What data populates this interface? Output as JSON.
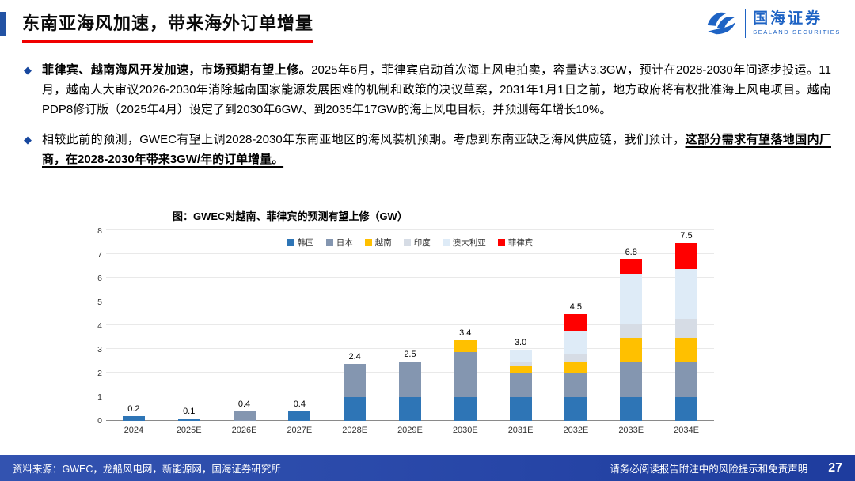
{
  "header": {
    "title": "东南亚海风加速，带来海外订单增量",
    "logo_name": "国海证券",
    "logo_sub": "SEALAND SECURITIES"
  },
  "bullets": {
    "marker": "◆",
    "items": [
      {
        "bold": "菲律宾、越南海风开发加速，市场预期有望上修。",
        "text": "2025年6月，菲律宾启动首次海上风电拍卖，容量达3.3GW，预计在2028-2030年间逐步投运。11月，越南人大审议2026-2030年消除越南国家能源发展困难的机制和政策的决议草案，2031年1月1日之前，地方政府将有权批准海上风电项目。越南PDP8修订版（2025年4月）设定了到2030年6GW、到2035年17GW的海上风电目标，并预测每年增长10%。"
      },
      {
        "text": "相较此前的预测，GWEC有望上调2028-2030年东南亚地区的海风装机预期。考虑到东南亚缺乏海风供应链，我们预计，",
        "bold_underline": "这部分需求有望落地国内厂商，在2028-2030年带来3GW/年的订单增量。"
      }
    ]
  },
  "chart_data": {
    "type": "bar",
    "stacked": true,
    "title": "图：GWEC对越南、菲律宾的预测有望上修（GW）",
    "categories": [
      "2024",
      "2025E",
      "2026E",
      "2027E",
      "2028E",
      "2029E",
      "2030E",
      "2031E",
      "2032E",
      "2033E",
      "2034E"
    ],
    "series": [
      {
        "name": "韩国",
        "color": "#2E75B6",
        "values": [
          0.2,
          0.1,
          0,
          0.4,
          1.0,
          1.0,
          1.0,
          1.0,
          1.0,
          1.0,
          1.0
        ]
      },
      {
        "name": "日本",
        "color": "#8496B0",
        "values": [
          0,
          0,
          0.4,
          0,
          1.4,
          1.5,
          1.9,
          1.0,
          1.0,
          1.5,
          1.5
        ]
      },
      {
        "name": "越南",
        "color": "#FFC000",
        "values": [
          0,
          0,
          0,
          0,
          0,
          0,
          0.5,
          0.3,
          0.5,
          1.0,
          1.0
        ]
      },
      {
        "name": "印度",
        "color": "#D6DCE5",
        "values": [
          0,
          0,
          0,
          0,
          0,
          0,
          0,
          0.2,
          0.3,
          0.6,
          0.8
        ]
      },
      {
        "name": "澳大利亚",
        "color": "#DEEBF7",
        "values": [
          0,
          0,
          0,
          0,
          0,
          0,
          0,
          0.5,
          1.0,
          2.1,
          2.1
        ]
      },
      {
        "name": "菲律宾",
        "color": "#FF0000",
        "values": [
          0,
          0,
          0,
          0,
          0,
          0,
          0,
          0,
          0.7,
          0.6,
          1.1
        ]
      }
    ],
    "totals": [
      "0.2",
      "0.1",
      "0.4",
      "0.4",
      "2.4",
      "2.5",
      "3.4",
      "3.0",
      "4.5",
      "6.8",
      "7.5"
    ],
    "ylim": [
      0,
      8
    ],
    "ytick_step": 1,
    "grid": true,
    "legend_position": "top-center"
  },
  "footer": {
    "source": "资料来源：GWEC，龙船风电网，新能源网，国海证券研究所",
    "disclaimer": "请务必阅读报告附注中的风险提示和免责声明",
    "page": "27"
  }
}
